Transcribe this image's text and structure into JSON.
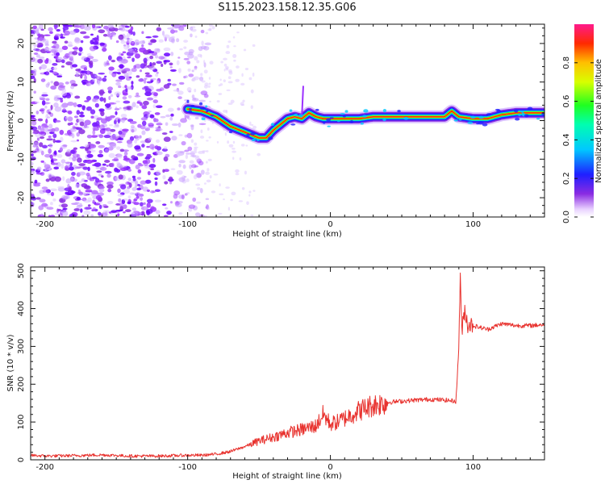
{
  "figure": {
    "title": "S115.2023.158.12.35.G06"
  },
  "chart_data": [
    {
      "type": "heatmap",
      "xlabel": "Height of straight line (km)",
      "ylabel": "Frequency (Hz)",
      "xlim": [
        -210,
        150
      ],
      "ylim": [
        -25,
        25
      ],
      "x_ticks": [
        -200,
        -100,
        0,
        100
      ],
      "y_ticks": [
        20,
        10,
        0,
        -10,
        -20
      ],
      "x_tick_labels": [
        "-200",
        "-100",
        "0",
        "100"
      ],
      "y_tick_labels": [
        "20",
        "10",
        "0",
        "-10",
        "-20"
      ],
      "colorbar": {
        "label": "Normalized spectral amplitude",
        "range": [
          0,
          1
        ],
        "ticks": [
          0.0,
          0.2,
          0.4,
          0.6,
          0.8
        ],
        "tick_labels": [
          "0.0",
          "0.2",
          "0.4",
          "0.6",
          "0.8"
        ]
      },
      "ridge": {
        "x": [
          -100,
          -90,
          -80,
          -70,
          -60,
          -50,
          -45,
          -40,
          -35,
          -30,
          -25,
          -20,
          -15,
          -10,
          -5,
          0,
          10,
          20,
          30,
          40,
          60,
          80,
          85,
          90,
          100,
          110,
          120,
          130,
          150
        ],
        "y": [
          3,
          2.5,
          1,
          -1.5,
          -3,
          -4.5,
          -4.5,
          -2.5,
          -1,
          0.5,
          1,
          0.5,
          2,
          1,
          0.5,
          0.5,
          0.5,
          0.5,
          1,
          1,
          1,
          1,
          2.5,
          1,
          0.5,
          0.5,
          1.5,
          2,
          2
        ],
        "strong_amplitude": 0.95
      }
    },
    {
      "type": "line",
      "xlabel": "Height of straight line (km)",
      "ylabel": "SNR (10 * v/v)",
      "xlim": [
        -210,
        150
      ],
      "ylim": [
        0,
        510
      ],
      "x_ticks": [
        -200,
        -100,
        0,
        100
      ],
      "y_ticks": [
        0,
        100,
        200,
        300,
        400,
        500
      ],
      "x_tick_labels": [
        "-200",
        "-100",
        "0",
        "100"
      ],
      "y_tick_labels": [
        "0",
        "100",
        "200",
        "300",
        "400",
        "500"
      ],
      "series": [
        {
          "color": "#e8322e",
          "x": [
            -210,
            -200,
            -180,
            -160,
            -140,
            -120,
            -100,
            -90,
            -80,
            -70,
            -60,
            -50,
            -40,
            -30,
            -20,
            -10,
            -5,
            0,
            5,
            10,
            20,
            30,
            40,
            50,
            60,
            70,
            80,
            88,
            90,
            91,
            92,
            94,
            96,
            100,
            110,
            120,
            130,
            140,
            150
          ],
          "y": [
            12,
            10,
            11,
            13,
            10,
            10,
            12,
            12,
            15,
            22,
            35,
            50,
            60,
            72,
            80,
            90,
            120,
            95,
            100,
            110,
            130,
            145,
            152,
            155,
            158,
            160,
            158,
            155,
            300,
            505,
            330,
            400,
            360,
            355,
            345,
            360,
            355,
            355,
            358
          ]
        }
      ]
    }
  ]
}
